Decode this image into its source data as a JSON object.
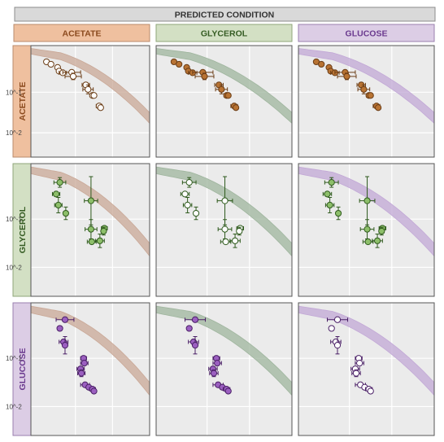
{
  "header": {
    "title": "PREDICTED CONDITION"
  },
  "columns": [
    {
      "label": "ACETATE",
      "fill": "#EFC09F",
      "stroke": "#B98B6C",
      "text": "#8B4A1E"
    },
    {
      "label": "GLYCEROL",
      "fill": "#D3E0C4",
      "stroke": "#8FA67A",
      "text": "#355C23"
    },
    {
      "label": "GLUCOSE",
      "fill": "#DCCDE5",
      "stroke": "#9A7FAE",
      "text": "#6B3A8F"
    }
  ],
  "rows": [
    {
      "label": "ACETATE",
      "fill": "#EFC09F",
      "stroke": "#B98B6C",
      "text": "#8B4A1E"
    },
    {
      "label": "GLYCEROL",
      "fill": "#D3E0C4",
      "stroke": "#8FA67A",
      "text": "#355C23"
    },
    {
      "label": "GLUCOSE",
      "fill": "#DCCDE5",
      "stroke": "#9A7FAE",
      "text": "#6B3A8F"
    }
  ],
  "y_tick_labels": [
    "10^-1",
    "10^-2"
  ],
  "colors": {
    "panel_bg": "#EBEBEB",
    "grid": "#FFFFFF",
    "band_acetate": "#C9A897",
    "band_glycerol": "#9FB59E",
    "band_glucose": "#C2A8D6",
    "point_acetate": "#B87333",
    "point_glycerol": "#8DBF6A",
    "point_glucose": "#9B5FC0",
    "edge_acetate": "#6B3D16",
    "edge_glycerol": "#2E5A1C",
    "edge_glucose": "#4A1F66"
  },
  "chart_data": {
    "type": "scatter",
    "note_scale": "log-log; panel x and y shown in log10 units",
    "xlim": [
      -1.3,
      0.3
    ],
    "ylim": [
      -2.6,
      0.15
    ],
    "y_ticks": [
      -1,
      -2
    ],
    "x_gridlines": [
      -0.7,
      -0.2
    ],
    "band_center": {
      "a": 0.0,
      "b": -0.008,
      "c": -0.27,
      "d": -0.5
    },
    "band_halfwidth": 0.07,
    "series": [
      {
        "condition": "ACETATE",
        "points": [
          {
            "x": -1.09,
            "y": -0.25
          },
          {
            "x": -1.03,
            "y": -0.31
          },
          {
            "x": -0.94,
            "y": -0.39
          },
          {
            "x": -0.92,
            "y": -0.48
          },
          {
            "x": -0.87,
            "y": -0.52,
            "xerr": 0.05
          },
          {
            "x": -0.75,
            "y": -0.51,
            "xerr": 0.12
          },
          {
            "x": -0.73,
            "y": -0.61,
            "xerr": 0.11,
            "yerr": 0.08
          },
          {
            "x": -0.56,
            "y": -0.82,
            "xerr": 0.05
          },
          {
            "x": -0.53,
            "y": -0.93,
            "xerr": 0.07,
            "yerr": 0.11
          },
          {
            "x": -0.47,
            "y": -1.08,
            "xerr": 0.03
          },
          {
            "x": -0.45,
            "y": -1.08
          },
          {
            "x": -0.38,
            "y": -1.34,
            "xerr": 0.04
          },
          {
            "x": -0.36,
            "y": -1.38
          }
        ]
      },
      {
        "condition": "GLYCEROL",
        "points": [
          {
            "x": -0.96,
            "y": -0.48,
            "xerr": 0.05
          },
          {
            "x": -0.91,
            "y": -0.24,
            "xerr": 0.08,
            "yerr": 0.1
          },
          {
            "x": -0.93,
            "y": -0.71,
            "xerr": 0.05,
            "yerr": 0.16
          },
          {
            "x": -0.83,
            "y": -0.88,
            "yerr": 0.13
          },
          {
            "x": -0.49,
            "y": -0.62,
            "xerr": 0.09,
            "yerr": 0.5
          },
          {
            "x": -0.49,
            "y": -1.21,
            "xerr": 0.08,
            "yerr": 0.2
          },
          {
            "x": -0.48,
            "y": -1.47,
            "xerr": 0.06
          },
          {
            "x": -0.37,
            "y": -1.45,
            "xerr": 0.06,
            "yerr": 0.14
          },
          {
            "x": -0.31,
            "y": -1.19,
            "xerr": 0.04
          },
          {
            "x": -0.32,
            "y": -1.25,
            "xerr": 0.03,
            "yerr": 0.08
          }
        ]
      },
      {
        "condition": "GLUCOSE",
        "points": [
          {
            "x": -0.84,
            "y": -0.2,
            "xerr": 0.12
          },
          {
            "x": -0.91,
            "y": -0.38
          },
          {
            "x": -0.86,
            "y": -0.66,
            "xerr": 0.06
          },
          {
            "x": -0.84,
            "y": -0.73,
            "yerr": 0.18
          },
          {
            "x": -0.59,
            "y": -1.0,
            "xerr": 0.04
          },
          {
            "x": -0.58,
            "y": -1.1,
            "xerr": 0.05
          },
          {
            "x": -0.63,
            "y": -1.22,
            "xerr": 0.05
          },
          {
            "x": -0.62,
            "y": -1.31,
            "xerr": 0.05,
            "yerr": 0.07
          },
          {
            "x": -0.57,
            "y": -1.55,
            "xerr": 0.06
          },
          {
            "x": -0.52,
            "y": -1.6
          },
          {
            "x": -0.47,
            "y": -1.64,
            "xerr": 0.04
          },
          {
            "x": -0.45,
            "y": -1.68
          }
        ]
      }
    ]
  }
}
